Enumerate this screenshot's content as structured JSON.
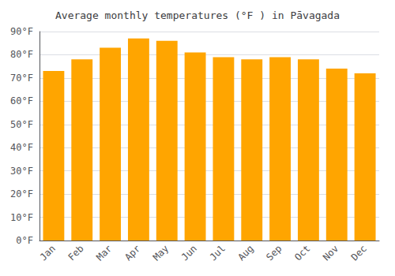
{
  "chart_data": {
    "type": "bar",
    "title": "Average monthly temperatures (°F ) in Pāvagada",
    "categories": [
      "Jan",
      "Feb",
      "Mar",
      "Apr",
      "May",
      "Jun",
      "Jul",
      "Aug",
      "Sep",
      "Oct",
      "Nov",
      "Dec"
    ],
    "values": [
      73,
      78,
      83,
      87,
      86,
      81,
      79,
      78,
      79,
      78,
      74,
      72
    ],
    "color": "#FFA500",
    "ylim": [
      0,
      90
    ],
    "yticks": [
      {
        "value": 0,
        "label": "0°F"
      },
      {
        "value": 10,
        "label": "10°F"
      },
      {
        "value": 20,
        "label": "20°F"
      },
      {
        "value": 30,
        "label": "30°F"
      },
      {
        "value": 40,
        "label": "40°F"
      },
      {
        "value": 50,
        "label": "50°F"
      },
      {
        "value": 60,
        "label": "60°F"
      },
      {
        "value": 70,
        "label": "70°F"
      },
      {
        "value": 80,
        "label": "80°F"
      },
      {
        "value": 90,
        "label": "90°F"
      }
    ],
    "grid": true
  }
}
